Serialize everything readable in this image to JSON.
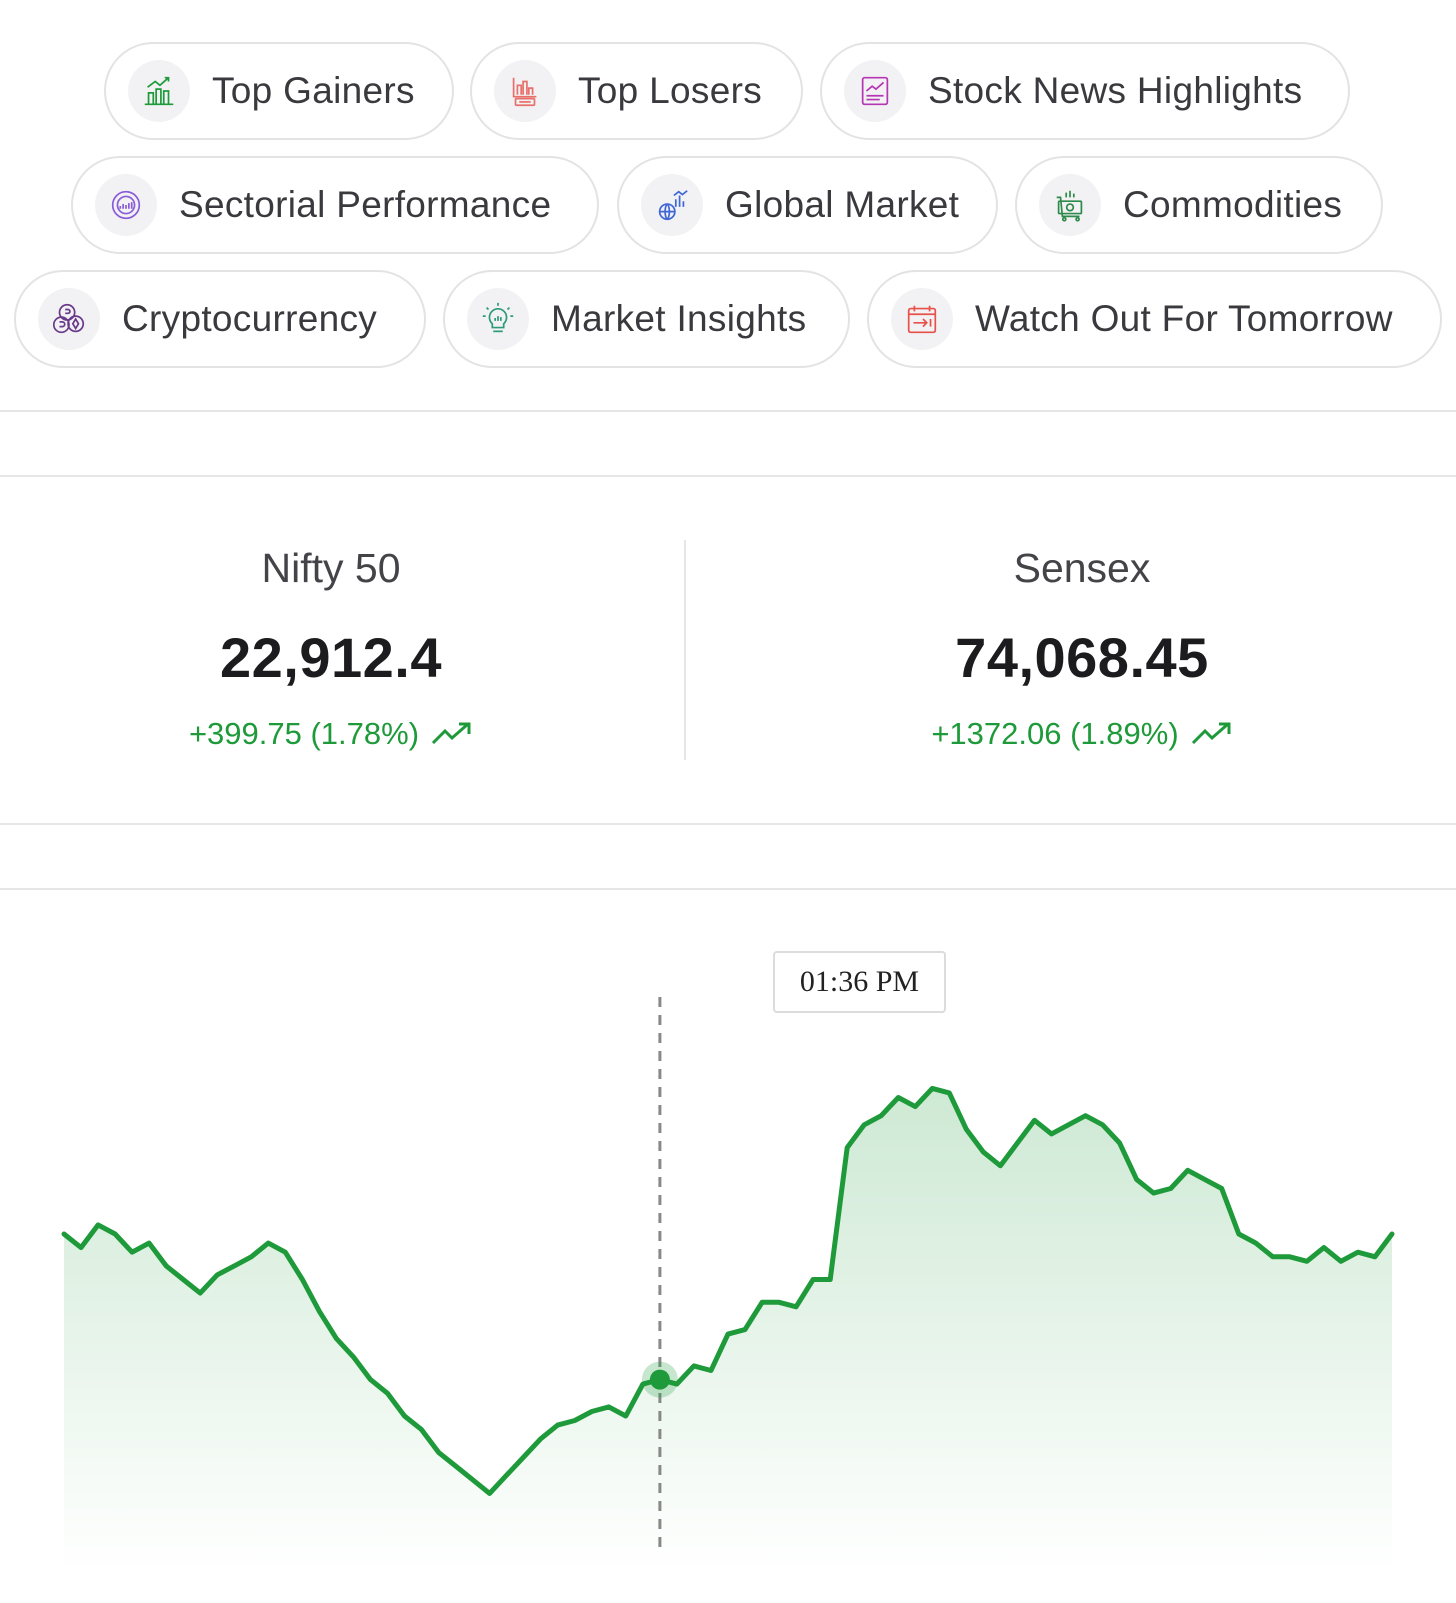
{
  "nav_chips": [
    {
      "label": "Top Gainers",
      "icon": "bar-chart-up-icon",
      "color": "#1e9a3a"
    },
    {
      "label": "Top Losers",
      "icon": "loss-chart-icon",
      "color": "#e8706a"
    },
    {
      "label": "Stock News Highlights",
      "icon": "news-chart-icon",
      "color": "#b535b5"
    },
    {
      "label": "Sectorial Performance",
      "icon": "sector-chart-icon",
      "color": "#8a5cd8"
    },
    {
      "label": "Global Market",
      "icon": "globe-chart-icon",
      "color": "#3f67d6"
    },
    {
      "label": "Commodities",
      "icon": "money-cart-icon",
      "color": "#2e8a4a"
    },
    {
      "label": "Cryptocurrency",
      "icon": "crypto-coins-icon",
      "color": "#6a3a8a"
    },
    {
      "label": "Market Insights",
      "icon": "lightbulb-chart-icon",
      "color": "#2e9a7a"
    },
    {
      "label": "Watch Out For Tomorrow",
      "icon": "calendar-arrow-icon",
      "color": "#e8504a"
    }
  ],
  "indices": [
    {
      "name": "Nifty 50",
      "value": "22,912.4",
      "change": "+399.75 (1.78%)",
      "trend": "up"
    },
    {
      "name": "Sensex",
      "value": "74,068.45",
      "change": "+1372.06 (1.89%)",
      "trend": "up"
    }
  ],
  "colors": {
    "positive": "#1e9a3a",
    "chip_border": "#e3e3e6",
    "divider": "#e6e6e8"
  },
  "chart_data": {
    "type": "area",
    "tooltip": {
      "label": "01:36 PM"
    },
    "highlight_index": 35,
    "ylim": [
      0,
      100
    ],
    "values": [
      60,
      57,
      62,
      60,
      56,
      58,
      53,
      50,
      47,
      51,
      53,
      55,
      58,
      56,
      50,
      43,
      37,
      33,
      28,
      25,
      20,
      17,
      12,
      9,
      6,
      3,
      7,
      11,
      15,
      18,
      19,
      21,
      22,
      20,
      27,
      28,
      27,
      31,
      30,
      38,
      39,
      45,
      45,
      44,
      50,
      50,
      79,
      84,
      86,
      90,
      88,
      92,
      91,
      83,
      78,
      75,
      80,
      85,
      82,
      84,
      86,
      84,
      80,
      72,
      69,
      70,
      74,
      72,
      70,
      60,
      58,
      55,
      55,
      54,
      57,
      54,
      56,
      55,
      60
    ],
    "grid": false,
    "legend": false
  }
}
